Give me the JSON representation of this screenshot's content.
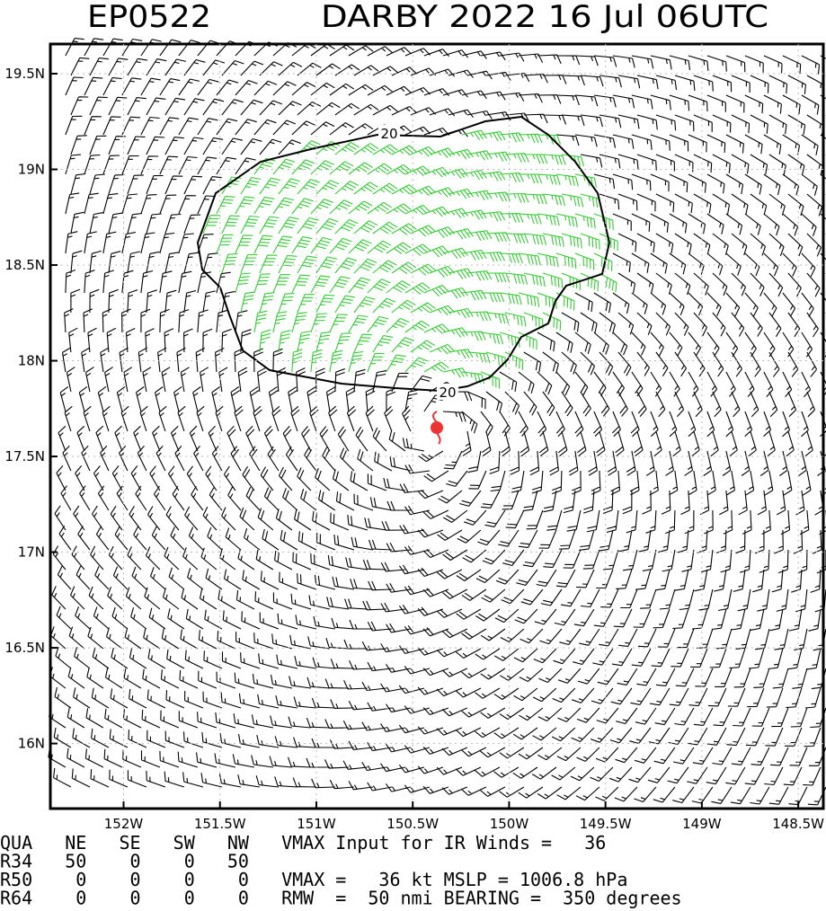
{
  "header": {
    "storm_id": "EP0522",
    "title": "DARBY 2022 16 Jul 06UTC"
  },
  "map": {
    "xlim": [
      -152.38,
      -148.37
    ],
    "ylim": [
      15.66,
      19.655
    ],
    "xticks": [
      {
        "value": -152,
        "label": "152W"
      },
      {
        "value": -151.5,
        "label": "151.5W"
      },
      {
        "value": -151,
        "label": "151W"
      },
      {
        "value": -150.5,
        "label": "150.5W"
      },
      {
        "value": -150,
        "label": "150W"
      },
      {
        "value": -149.5,
        "label": "149.5W"
      },
      {
        "value": -149,
        "label": "149W"
      },
      {
        "value": -148.5,
        "label": "148.5W"
      }
    ],
    "yticks": [
      {
        "value": 16,
        "label": "16N"
      },
      {
        "value": 16.5,
        "label": "16.5N"
      },
      {
        "value": 17,
        "label": "17N"
      },
      {
        "value": 17.5,
        "label": "17.5N"
      },
      {
        "value": 18,
        "label": "18N"
      },
      {
        "value": 18.5,
        "label": "18.5N"
      },
      {
        "value": 19,
        "label": "19N"
      },
      {
        "value": 19.5,
        "label": "19.5N"
      }
    ],
    "contour_label": "20"
  },
  "footer": {
    "lines": [
      "QUA   NE   SE   SW   NW   VMAX Input for IR Winds =   36",
      "R34   50    0    0   50",
      "R50    0    0    0    0   VMAX =   36 kt MSLP = 1006.8 hPa",
      "R64    0    0    0    0   RMW  =  50 nmi BEARING =  350 degrees"
    ]
  }
}
